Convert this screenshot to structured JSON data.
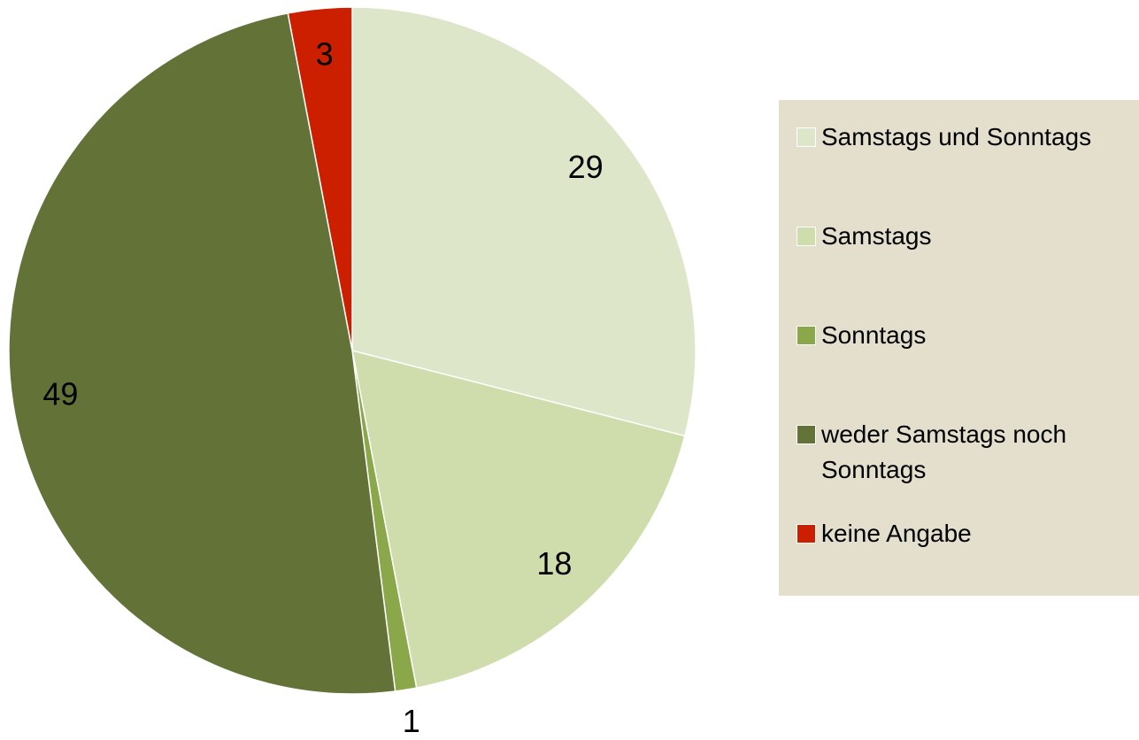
{
  "chart_data": {
    "type": "pie",
    "categories": [
      "Samstags und Sonntags",
      "Samstags",
      "Sonntags",
      "weder Samstags noch Sonntags",
      "keine Angabe"
    ],
    "values": [
      29,
      18,
      1,
      49,
      3
    ],
    "colors": [
      "#dde6c8",
      "#cfdcab",
      "#8aa84a",
      "#637337",
      "#cc1f00"
    ],
    "legend": "right"
  }
}
